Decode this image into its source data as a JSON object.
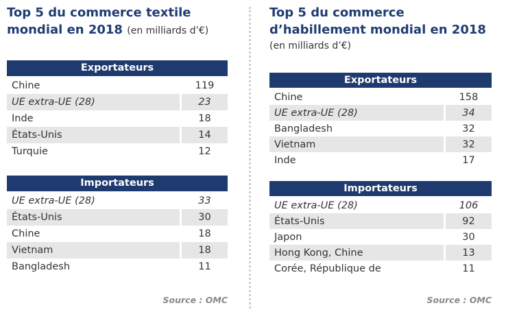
{
  "panels": [
    {
      "title": {
        "line1": "Top 5 du commerce textile",
        "line2": "mondial en 2018",
        "unit": "(en milliards d’€)"
      },
      "tables": [
        {
          "header": "Exportateurs",
          "rows": [
            [
              "Chine",
              "119"
            ],
            [
              "UE extra-UE (28)",
              "23"
            ],
            [
              "Inde",
              "18"
            ],
            [
              "États-Unis",
              "14"
            ],
            [
              "Turquie",
              "12"
            ]
          ]
        },
        {
          "header": "Importateurs",
          "rows": [
            [
              "UE extra-UE (28)",
              "33"
            ],
            [
              "États-Unis",
              "30"
            ],
            [
              "Chine",
              "18"
            ],
            [
              "Vietnam",
              "18"
            ],
            [
              "Bangladesh",
              "11"
            ]
          ]
        }
      ],
      "source": "Source : OMC"
    },
    {
      "title": {
        "line1": "Top 5 du commerce",
        "line2": "d’habillement mondial en 2018",
        "unit": "(en milliards d’€)"
      },
      "tables": [
        {
          "header": "Exportateurs",
          "rows": [
            [
              "Chine",
              "158"
            ],
            [
              "UE extra-UE (28)",
              "34"
            ],
            [
              "Bangladesh",
              "32"
            ],
            [
              "Vietnam",
              "32"
            ],
            [
              "Inde",
              "17"
            ]
          ]
        },
        {
          "header": "Importateurs",
          "rows": [
            [
              "UE extra-UE (28)",
              "106"
            ],
            [
              "États-Unis",
              "92"
            ],
            [
              "Japon",
              "30"
            ],
            [
              "Hong Kong, Chine",
              "13"
            ],
            [
              "Corée, République de",
              "11"
            ]
          ]
        }
      ],
      "source": "Source : OMC"
    }
  ]
}
